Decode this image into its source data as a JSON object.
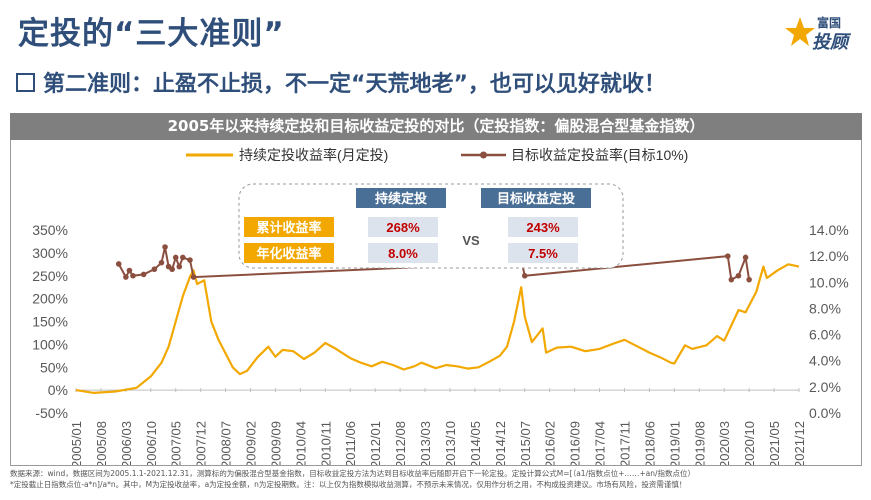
{
  "header": {
    "title": "定投的“三大准则”",
    "subtitle": "第二准则：止盈不止损，不一定“天荒地老”，也可以见好就收！",
    "logo_top": "富国",
    "logo_name": "投顾",
    "logo_icon": "star-icon"
  },
  "colors": {
    "title_blue": "#2f4f7a",
    "series_continuous": "#f2a800",
    "series_target": "#8b4f3f",
    "label_orange": "#f2a800",
    "header_blue": "#4a6f97",
    "value_red": "#c00000"
  },
  "footer": {
    "line1": "数据来源：wind，数据区间为2005.1.1-2021.12.31，测算标的为偏股混合型基金指数，目标收益定投方法为达到目标收益率后随即开启下一轮定投。定投计算公式M=[（a1/指数点位+……+an/指数点位）",
    "line2": "*定投截止日指数点位-a*n]/a*n。其中，M为定投收益率，a为定投金额，n为定投期数。注：以上仅为指数模拟收益测算，不预示未来情况，仅用作分析之用，不构成投资建议。市场有风险，投资需谨慎！"
  },
  "chart_data": {
    "type": "line",
    "title": "2005年以来持续定投和目标收益定投的对比（定投指数：偏股混合型基金指数）",
    "legend": {
      "placement": "top-center",
      "entries": [
        "持续定投收益率(月定投)",
        "目标收益定投益率(目标10%)"
      ]
    },
    "x_tick_labels": [
      "2005/01",
      "2005/08",
      "2006/03",
      "2006/10",
      "2007/05",
      "2007/12",
      "2008/07",
      "2009/02",
      "2009/09",
      "2010/04",
      "2010/11",
      "2011/06",
      "2012/01",
      "2012/08",
      "2013/03",
      "2013/10",
      "2014/05",
      "2014/12",
      "2015/07",
      "2016/02",
      "2016/09",
      "2017/04",
      "2017/11",
      "2018/06",
      "2019/01",
      "2019/08",
      "2020/03",
      "2020/10",
      "2021/05",
      "2021/12"
    ],
    "y_left": {
      "ticks": [
        "-50%",
        "0%",
        "50%",
        "100%",
        "150%",
        "200%",
        "250%",
        "300%",
        "350%"
      ],
      "range": [
        -50,
        350
      ],
      "unit": "%"
    },
    "y_right": {
      "ticks": [
        "0.0%",
        "2.0%",
        "4.0%",
        "6.0%",
        "8.0%",
        "10.0%",
        "12.0%",
        "14.0%"
      ],
      "range": [
        0,
        14
      ],
      "unit": "%"
    },
    "grid": false,
    "series": [
      {
        "name": "持续定投收益率(月定投)",
        "axis": "left",
        "points": [
          [
            "2005/01",
            0
          ],
          [
            "2005/06",
            -6
          ],
          [
            "2005/12",
            -3
          ],
          [
            "2006/03",
            1
          ],
          [
            "2006/06",
            5
          ],
          [
            "2006/10",
            30
          ],
          [
            "2007/01",
            60
          ],
          [
            "2007/03",
            95
          ],
          [
            "2007/05",
            150
          ],
          [
            "2007/07",
            205
          ],
          [
            "2007/09",
            248
          ],
          [
            "2007/10",
            262
          ],
          [
            "2007/11",
            232
          ],
          [
            "2008/01",
            240
          ],
          [
            "2008/03",
            150
          ],
          [
            "2008/05",
            110
          ],
          [
            "2008/07",
            80
          ],
          [
            "2008/09",
            50
          ],
          [
            "2008/11",
            35
          ],
          [
            "2009/01",
            42
          ],
          [
            "2009/04",
            72
          ],
          [
            "2009/07",
            95
          ],
          [
            "2009/09",
            73
          ],
          [
            "2009/11",
            88
          ],
          [
            "2010/02",
            85
          ],
          [
            "2010/05",
            68
          ],
          [
            "2010/08",
            82
          ],
          [
            "2010/11",
            103
          ],
          [
            "2011/02",
            90
          ],
          [
            "2011/06",
            70
          ],
          [
            "2011/09",
            60
          ],
          [
            "2011/12",
            52
          ],
          [
            "2012/03",
            62
          ],
          [
            "2012/06",
            55
          ],
          [
            "2012/09",
            45
          ],
          [
            "2012/12",
            52
          ],
          [
            "2013/02",
            60
          ],
          [
            "2013/06",
            48
          ],
          [
            "2013/09",
            55
          ],
          [
            "2013/12",
            52
          ],
          [
            "2014/03",
            47
          ],
          [
            "2014/06",
            50
          ],
          [
            "2014/09",
            62
          ],
          [
            "2014/12",
            75
          ],
          [
            "2015/02",
            95
          ],
          [
            "2015/04",
            150
          ],
          [
            "2015/06",
            225
          ],
          [
            "2015/07",
            160
          ],
          [
            "2015/09",
            105
          ],
          [
            "2015/12",
            135
          ],
          [
            "2016/01",
            82
          ],
          [
            "2016/04",
            93
          ],
          [
            "2016/08",
            95
          ],
          [
            "2016/12",
            85
          ],
          [
            "2017/04",
            90
          ],
          [
            "2017/08",
            102
          ],
          [
            "2017/11",
            110
          ],
          [
            "2018/02",
            98
          ],
          [
            "2018/06",
            82
          ],
          [
            "2018/09",
            72
          ],
          [
            "2018/12",
            60
          ],
          [
            "2019/01",
            58
          ],
          [
            "2019/04",
            98
          ],
          [
            "2019/06",
            90
          ],
          [
            "2019/10",
            98
          ],
          [
            "2020/01",
            118
          ],
          [
            "2020/03",
            108
          ],
          [
            "2020/07",
            175
          ],
          [
            "2020/09",
            170
          ],
          [
            "2020/12",
            215
          ],
          [
            "2021/02",
            270
          ],
          [
            "2021/03",
            245
          ],
          [
            "2021/06",
            262
          ],
          [
            "2021/09",
            275
          ],
          [
            "2021/12",
            270
          ]
        ]
      },
      {
        "name": "目标收益定投益率(目标10%)",
        "axis": "right",
        "points": [
          [
            "2006/01",
            11.4
          ],
          [
            "2006/03",
            10.4
          ],
          [
            "2006/04",
            10.9
          ],
          [
            "2006/05",
            10.5
          ],
          [
            "2006/08",
            10.6
          ],
          [
            "2006/11",
            11.0
          ],
          [
            "2007/01",
            11.5
          ],
          [
            "2007/02",
            12.7
          ],
          [
            "2007/03",
            11.2
          ],
          [
            "2007/04",
            11.0
          ],
          [
            "2007/05",
            11.9
          ],
          [
            "2007/06",
            11.2
          ],
          [
            "2007/07",
            11.9
          ],
          [
            "2007/09",
            11.7
          ],
          [
            "2007/10",
            10.4
          ],
          [
            "2015/05",
            11.5
          ],
          [
            "2015/06",
            11.7
          ],
          [
            "2015/07",
            10.5
          ],
          [
            "2020/04",
            12.0
          ],
          [
            "2020/05",
            10.2
          ],
          [
            "2020/07",
            10.5
          ],
          [
            "2020/09",
            11.9
          ],
          [
            "2020/10",
            10.2
          ]
        ]
      }
    ],
    "comparison_table": {
      "columns": [
        "持续定投",
        "目标收益定投"
      ],
      "rows": [
        {
          "label": "累计收益率",
          "continuous": "268%",
          "target": "243%"
        },
        {
          "label": "年化收益率",
          "continuous": "8.0%",
          "target": "7.5%"
        }
      ],
      "vs": "VS"
    }
  }
}
